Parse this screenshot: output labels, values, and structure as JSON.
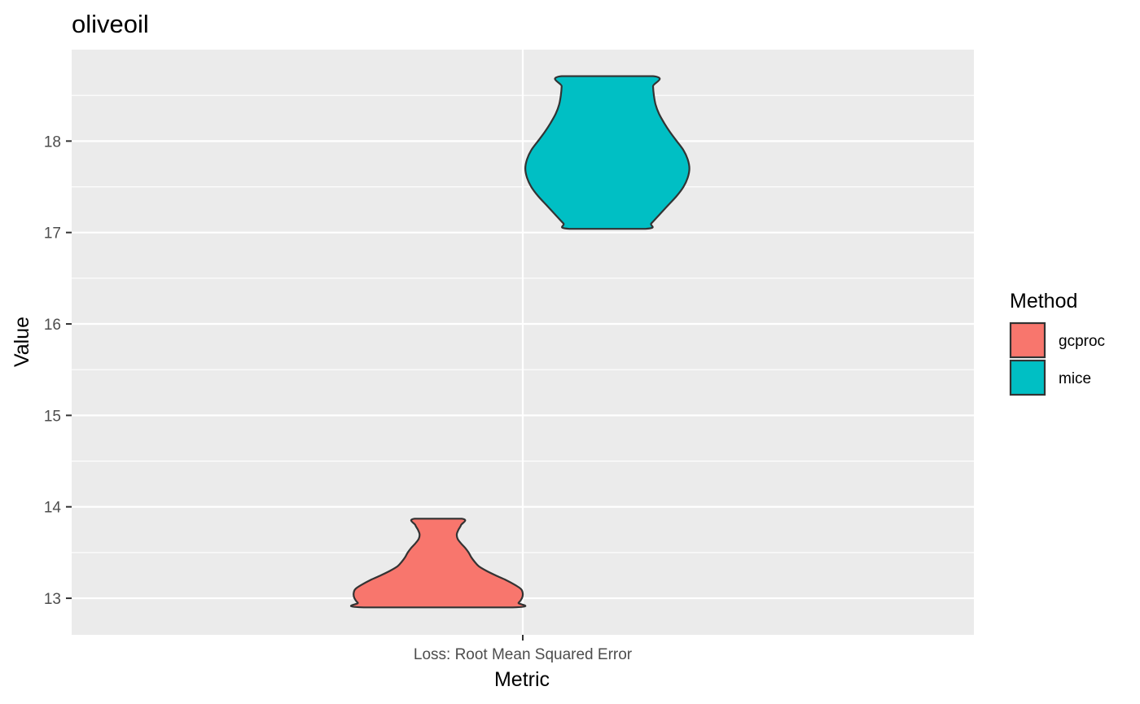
{
  "chart_data": {
    "type": "violin",
    "title": "oliveoil",
    "xlabel": "Metric",
    "ylabel": "Value",
    "categories": [
      "Loss: Root Mean Squared Error"
    ],
    "y_ticks": [
      13,
      14,
      15,
      16,
      17,
      18
    ],
    "ylim": [
      12.6,
      19.0
    ],
    "grid": true,
    "legend": {
      "title": "Method",
      "position": "right"
    },
    "series": [
      {
        "name": "gcproc",
        "color": "#F8766D",
        "min": 12.9,
        "max": 13.87,
        "density_profile": [
          [
            12.9,
            0.88
          ],
          [
            12.95,
            0.95
          ],
          [
            13.0,
            0.99
          ],
          [
            13.05,
            1.0
          ],
          [
            13.1,
            0.98
          ],
          [
            13.15,
            0.9
          ],
          [
            13.2,
            0.8
          ],
          [
            13.25,
            0.68
          ],
          [
            13.3,
            0.57
          ],
          [
            13.35,
            0.48
          ],
          [
            13.4,
            0.43
          ],
          [
            13.45,
            0.39
          ],
          [
            13.5,
            0.36
          ],
          [
            13.55,
            0.32
          ],
          [
            13.6,
            0.27
          ],
          [
            13.65,
            0.23
          ],
          [
            13.7,
            0.22
          ],
          [
            13.75,
            0.24
          ],
          [
            13.8,
            0.27
          ],
          [
            13.87,
            0.28
          ]
        ]
      },
      {
        "name": "mice",
        "color": "#00BFC4",
        "min": 17.04,
        "max": 18.71,
        "density_profile": [
          [
            17.04,
            0.45
          ],
          [
            17.1,
            0.52
          ],
          [
            17.2,
            0.62
          ],
          [
            17.3,
            0.72
          ],
          [
            17.4,
            0.82
          ],
          [
            17.5,
            0.9
          ],
          [
            17.6,
            0.95
          ],
          [
            17.7,
            0.97
          ],
          [
            17.8,
            0.95
          ],
          [
            17.9,
            0.9
          ],
          [
            18.0,
            0.82
          ],
          [
            18.1,
            0.74
          ],
          [
            18.2,
            0.67
          ],
          [
            18.3,
            0.61
          ],
          [
            18.4,
            0.57
          ],
          [
            18.5,
            0.55
          ],
          [
            18.6,
            0.54
          ],
          [
            18.71,
            0.54
          ]
        ]
      }
    ]
  }
}
